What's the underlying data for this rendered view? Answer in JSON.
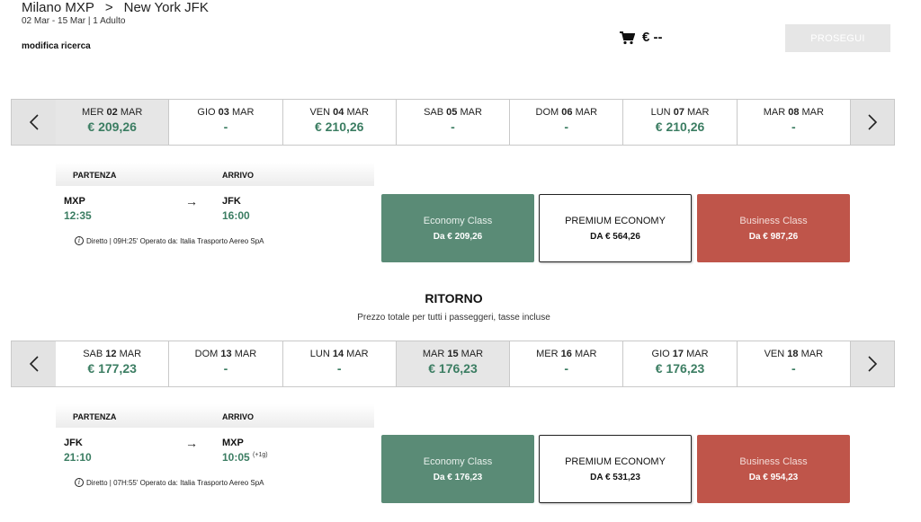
{
  "header": {
    "origin": "Milano MXP",
    "destination": "New York JFK",
    "subtitle": "02 Mar - 15 Mar | 1 Adulto",
    "modify_label": "modifica ricerca",
    "cart_total": "€ --",
    "proceed_label": "PROSEGUI"
  },
  "outbound": {
    "days": [
      {
        "dow": "MER",
        "num": "02",
        "mon": "MAR",
        "price": "€ 209,26"
      },
      {
        "dow": "GIO",
        "num": "03",
        "mon": "MAR",
        "price": "-"
      },
      {
        "dow": "VEN",
        "num": "04",
        "mon": "MAR",
        "price": "€ 210,26"
      },
      {
        "dow": "SAB",
        "num": "05",
        "mon": "MAR",
        "price": "-"
      },
      {
        "dow": "DOM",
        "num": "06",
        "mon": "MAR",
        "price": "-"
      },
      {
        "dow": "LUN",
        "num": "07",
        "mon": "MAR",
        "price": "€ 210,26"
      },
      {
        "dow": "MAR",
        "num": "08",
        "mon": "MAR",
        "price": "-"
      }
    ],
    "flight": {
      "departure_header": "PARTENZA",
      "arrival_header": "ARRIVO",
      "from_code": "MXP",
      "from_time": "12:35",
      "to_code": "JFK",
      "to_time": "16:00",
      "day_offset": "",
      "info": "Diretto | 09H:25' Operato da: Italia Trasporto Aereo SpA"
    },
    "fares": [
      {
        "name": "Economy Class",
        "price": "Da € 209,26"
      },
      {
        "name": "PREMIUM ECONOMY",
        "price": "DA € 564,26"
      },
      {
        "name": "Business Class",
        "price": "Da € 987,26"
      }
    ]
  },
  "return_section": {
    "title": "RITORNO",
    "subtitle": "Prezzo totale per tutti i passeggeri, tasse incluse"
  },
  "inbound": {
    "days": [
      {
        "dow": "SAB",
        "num": "12",
        "mon": "MAR",
        "price": "€ 177,23"
      },
      {
        "dow": "DOM",
        "num": "13",
        "mon": "MAR",
        "price": "-"
      },
      {
        "dow": "LUN",
        "num": "14",
        "mon": "MAR",
        "price": "-"
      },
      {
        "dow": "MAR",
        "num": "15",
        "mon": "MAR",
        "price": "€ 176,23"
      },
      {
        "dow": "MER",
        "num": "16",
        "mon": "MAR",
        "price": "-"
      },
      {
        "dow": "GIO",
        "num": "17",
        "mon": "MAR",
        "price": "€ 176,23"
      },
      {
        "dow": "VEN",
        "num": "18",
        "mon": "MAR",
        "price": "-"
      }
    ],
    "flight": {
      "departure_header": "PARTENZA",
      "arrival_header": "ARRIVO",
      "from_code": "JFK",
      "from_time": "21:10",
      "to_code": "MXP",
      "to_time": "10:05",
      "day_offset": "(+1g)",
      "info": "Diretto | 07H:55' Operato da: Italia Trasporto Aereo SpA"
    },
    "fares": [
      {
        "name": "Economy Class",
        "price": "Da € 176,23"
      },
      {
        "name": "PREMIUM ECONOMY",
        "price": "DA € 531,23"
      },
      {
        "name": "Business Class",
        "price": "Da € 954,23"
      }
    ]
  },
  "colors": {
    "price_green": "#3b7d62",
    "economy_bg": "#5a8b76",
    "business_bg": "#bf554a",
    "selected_day_bg": "#e6e6e6"
  }
}
